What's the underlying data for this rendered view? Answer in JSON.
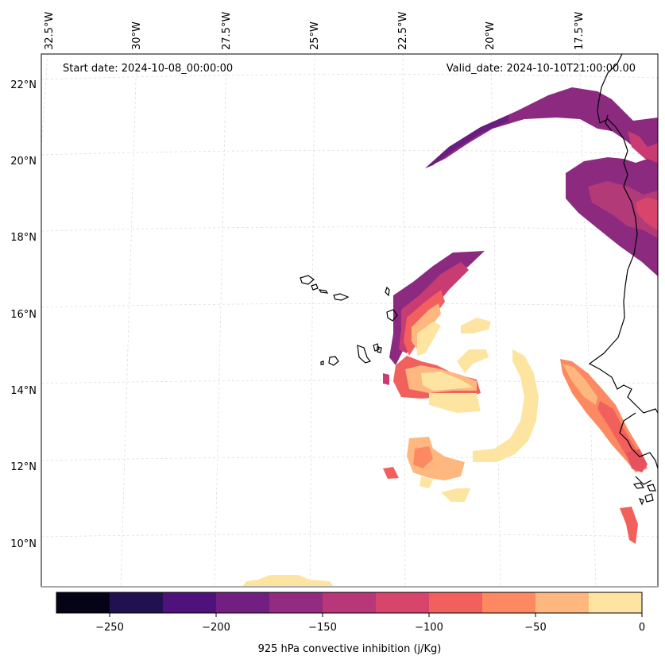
{
  "map": {
    "start_date": "Start date: 2024-10-08_00:00:00",
    "valid_date": "Valid_date: 2024-10-10T21:00:00.00",
    "lon_labels": [
      "32.5°W",
      "30°W",
      "27.5°W",
      "25°W",
      "22.5°W",
      "20°W",
      "17.5°W"
    ],
    "lat_labels": [
      "22°N",
      "20°N",
      "18°N",
      "16°N",
      "14°N",
      "12°N",
      "10°N"
    ]
  },
  "colorbar": {
    "label": "925 hPa convective inhibition (j/Kg)",
    "ticks": [
      "−250",
      "−200",
      "−150",
      "−100",
      "−50",
      "0"
    ],
    "colors": [
      "#050417",
      "#221150",
      "#4f117b",
      "#721f81",
      "#932b80",
      "#b73779",
      "#d8456c",
      "#f1605d",
      "#fc8961",
      "#feb77e",
      "#fde5a1"
    ]
  },
  "chart_data": {
    "type": "filled-contour map",
    "variable": "925 hPa convective inhibition",
    "units": "j/Kg",
    "levels": [
      -275,
      -250,
      -225,
      -200,
      -175,
      -150,
      -125,
      -100,
      -75,
      -50,
      -25,
      0
    ],
    "colorbar_range": [
      -275,
      0
    ],
    "lon_range": [
      -33,
      -16
    ],
    "lat_range": [
      9,
      23
    ]
  }
}
